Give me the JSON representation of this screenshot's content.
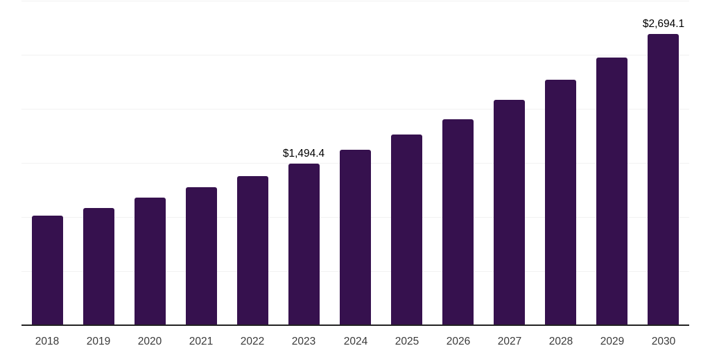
{
  "chart_data": {
    "type": "bar",
    "title": "",
    "xlabel": "",
    "ylabel": "",
    "categories": [
      "2018",
      "2019",
      "2020",
      "2021",
      "2022",
      "2023",
      "2024",
      "2025",
      "2026",
      "2027",
      "2028",
      "2029",
      "2030"
    ],
    "values": [
      1013,
      1085,
      1180,
      1278,
      1380,
      1494.4,
      1620,
      1760,
      1905,
      2085,
      2270,
      2475,
      2694.1
    ],
    "data_labels": [
      {
        "category": "2023",
        "text": "$1,494.4"
      },
      {
        "category": "2030",
        "text": "$2,694.1"
      }
    ],
    "ylim": [
      0,
      3000
    ],
    "grid": true,
    "grid_interval": 500,
    "y_axis_labels_visible": false,
    "legend": "none",
    "colors": {
      "bar": "#36114e",
      "grid": "#f2f2f2",
      "axis_line": "#222222",
      "data_label": "#000000",
      "tick_label": "#3a3a3a",
      "background": "#ffffff"
    }
  }
}
